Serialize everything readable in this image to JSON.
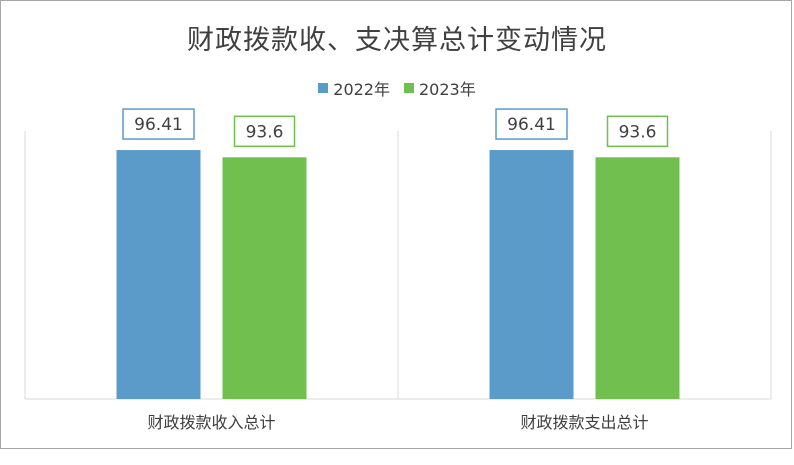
{
  "chart_data": {
    "type": "bar",
    "title": "财政拨款收、支决算总计变动情况",
    "categories": [
      "财政拨款收入总计",
      "财政拨款支出总计"
    ],
    "series": [
      {
        "name": "2022年",
        "values": [
          96.41,
          96.41
        ],
        "labels": [
          "96.41",
          "96.41"
        ],
        "color": "#5b9bc9"
      },
      {
        "name": "2023年",
        "values": [
          93.6,
          93.6
        ],
        "labels": [
          "93.6",
          "93.6"
        ],
        "color": "#70bf4f"
      }
    ],
    "ylim": [
      0,
      100
    ],
    "grid": false,
    "legend_position": "top-center"
  }
}
